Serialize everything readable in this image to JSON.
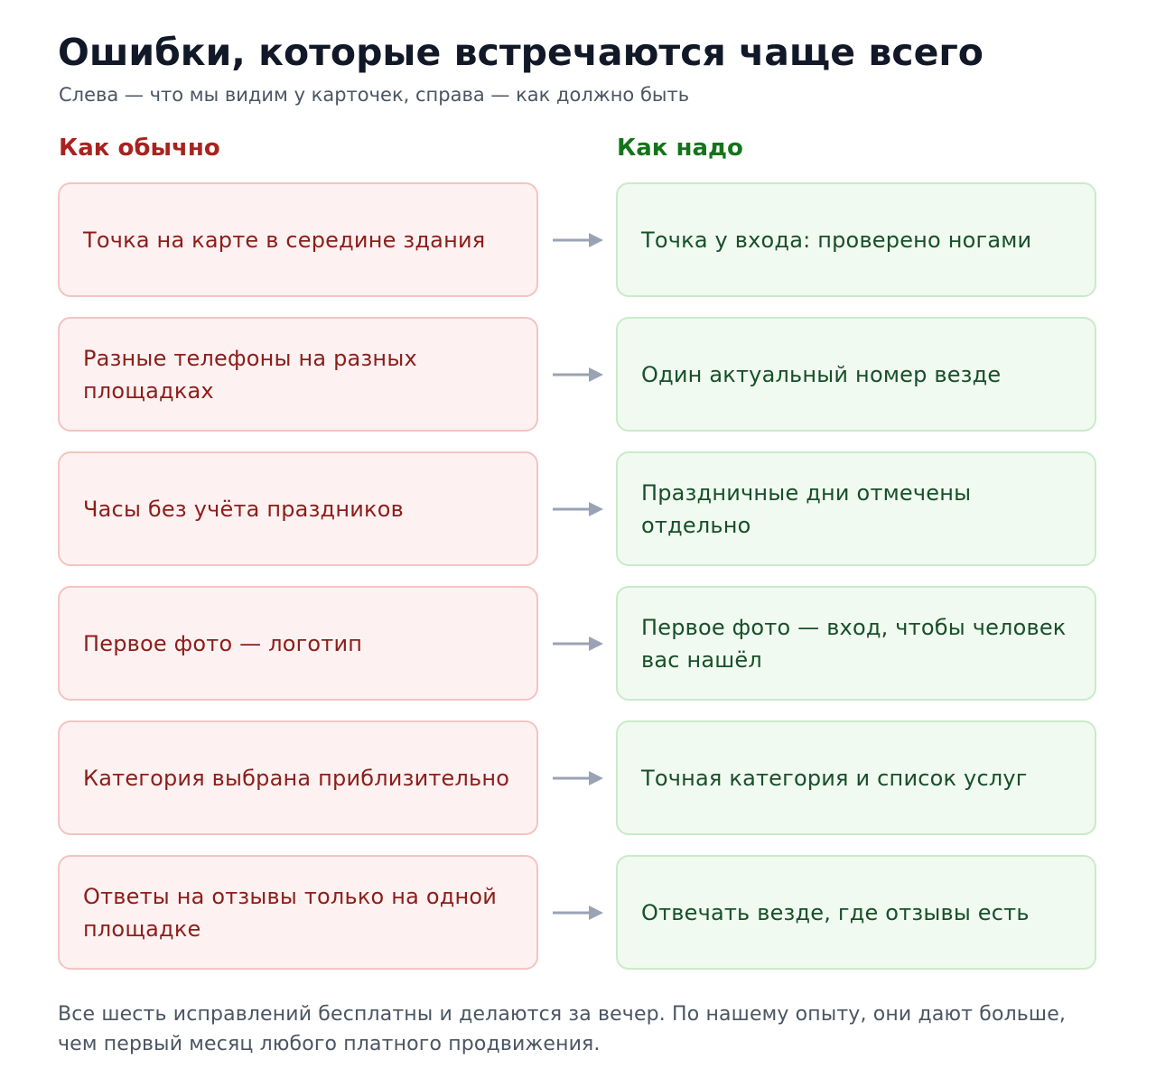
{
  "title": "Ошибки, которые встречаются чаще всего",
  "subtitle": "Слева — что мы видим у карточек, справа — как должно быть",
  "columns": {
    "bad": "Как обычно",
    "good": "Как надо"
  },
  "rows": [
    {
      "bad": "Точка на карте в середине здания",
      "good": "Точка у входа: проверено ногами"
    },
    {
      "bad": "Разные телефоны на разных площадках",
      "good": "Один актуальный номер везде"
    },
    {
      "bad": "Часы без учёта праздников",
      "good": "Праздничные дни отмечены отдельно"
    },
    {
      "bad": "Первое фото — логотип",
      "good": "Первое фото — вход, чтобы человек вас нашёл"
    },
    {
      "bad": "Категория выбрана приблизительно",
      "good": "Точная категория и список услуг"
    },
    {
      "bad": "Ответы на отзывы только на одной площадке",
      "good": "Отвечать везде, где отзывы есть"
    }
  ],
  "note": "Все шесть исправлений бесплатны и делаются за вечер. По нашему опыту, они дают больше, чем первый месяц любого платного продвижения.",
  "colors": {
    "bad_text": "#8c1e1a",
    "good_text": "#17502a",
    "arrow": "#9aa3b4"
  }
}
